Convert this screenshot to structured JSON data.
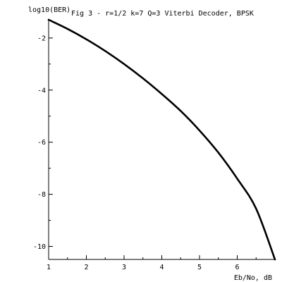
{
  "chart_data": {
    "type": "line",
    "title": "Fig 3 - r=1/2 k=7 Q=3 Viterbi Decoder, BPSK",
    "xlabel": "Eb/No, dB",
    "ylabel": "log10(BER)",
    "xlim": [
      1,
      7
    ],
    "ylim": [
      -10.5,
      -1.3
    ],
    "xticks": [
      "1",
      "2",
      "3",
      "4",
      "5",
      "6"
    ],
    "yticks": [
      "-2",
      "-4",
      "-6",
      "-8",
      "-10"
    ],
    "grid": false,
    "series": [
      {
        "color": "#000000",
        "x": [
          1.0,
          1.5,
          2.0,
          2.5,
          3.0,
          3.5,
          4.0,
          4.5,
          5.0,
          5.5,
          6.0,
          6.5,
          7.0
        ],
        "y": [
          -1.3,
          -1.65,
          -2.05,
          -2.5,
          -3.0,
          -3.55,
          -4.15,
          -4.8,
          -5.55,
          -6.4,
          -7.4,
          -8.55,
          -10.5
        ]
      }
    ]
  }
}
